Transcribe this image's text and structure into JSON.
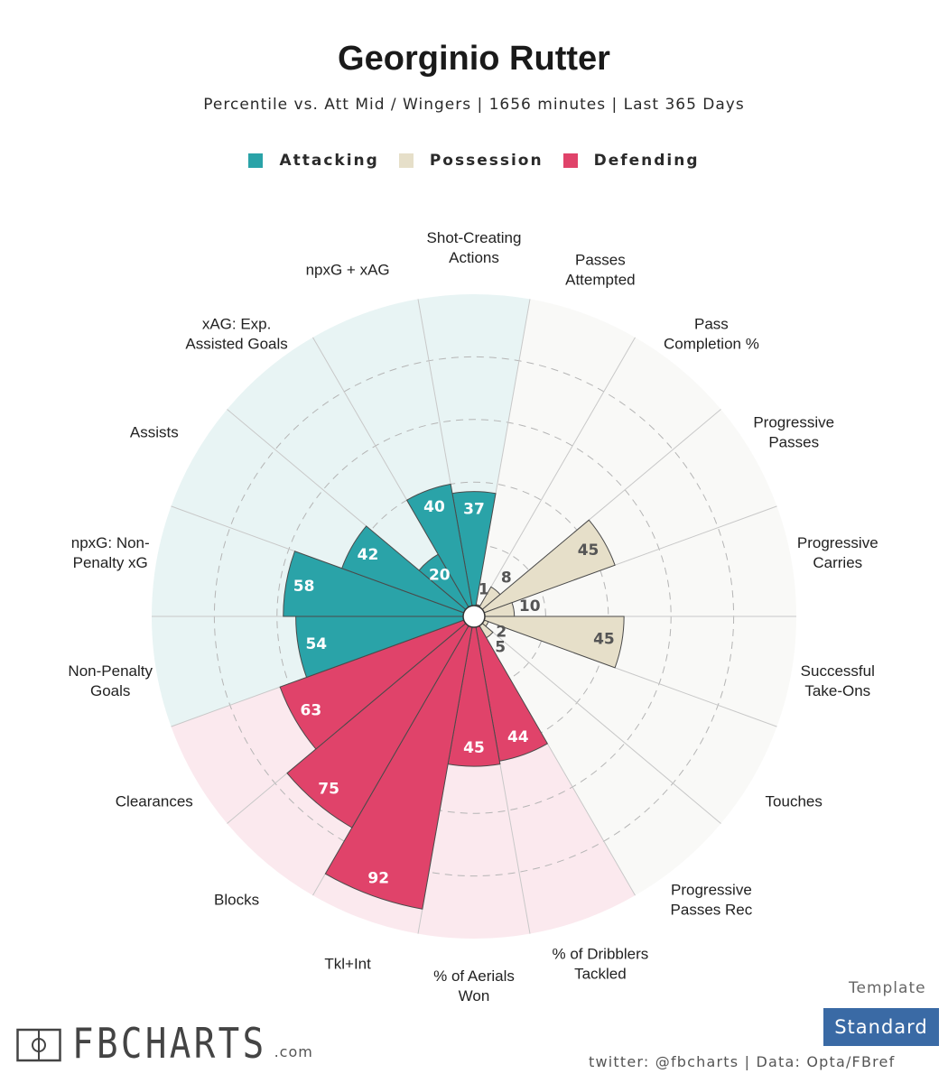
{
  "title": "Georginio Rutter",
  "subtitle": "Percentile vs. Att Mid / Wingers | 1656 minutes | Last 365 Days",
  "legend": [
    {
      "label": "Attacking",
      "color": "#2aa3a8"
    },
    {
      "label": "Possession",
      "color": "#e6dfc9"
    },
    {
      "label": "Defending",
      "color": "#e0436a"
    }
  ],
  "chart_data": {
    "type": "radial-bar",
    "range": [
      0,
      100
    ],
    "categories": [
      {
        "label": "Shot-Creating\nActions",
        "value": 37,
        "group": "Attacking"
      },
      {
        "label": "Passes\nAttempted",
        "value": 1,
        "group": "Possession"
      },
      {
        "label": "Pass\nCompletion %",
        "value": 8,
        "group": "Possession"
      },
      {
        "label": "Progressive\nPasses",
        "value": 45,
        "group": "Possession"
      },
      {
        "label": "Progressive\nCarries",
        "value": 10,
        "group": "Possession"
      },
      {
        "label": "Successful\nTake-Ons",
        "value": 45,
        "group": "Possession"
      },
      {
        "label": "Touches",
        "value": 2,
        "group": "Possession"
      },
      {
        "label": "Progressive\nPasses Rec",
        "value": 5,
        "group": "Possession"
      },
      {
        "label": "% of Dribblers\nTackled",
        "value": 44,
        "group": "Defending"
      },
      {
        "label": "% of Aerials\nWon",
        "value": 45,
        "group": "Defending"
      },
      {
        "label": "Tkl+Int",
        "value": 92,
        "group": "Defending"
      },
      {
        "label": "Blocks",
        "value": 75,
        "group": "Defending"
      },
      {
        "label": "Clearances",
        "value": 63,
        "group": "Defending"
      },
      {
        "label": "Non-Penalty\nGoals",
        "value": 54,
        "group": "Attacking"
      },
      {
        "label": "npxG: Non-\nPenalty xG",
        "value": 58,
        "group": "Attacking"
      },
      {
        "label": "Assists",
        "value": 42,
        "group": "Attacking"
      },
      {
        "label": "xAG: Exp.\nAssisted Goals",
        "value": 20,
        "group": "Attacking"
      },
      {
        "label": "npxG + xAG",
        "value": 40,
        "group": "Attacking"
      }
    ],
    "group_colors": {
      "Attacking": {
        "bar": "#2aa3a8",
        "background": "#e8f4f4",
        "value_text": "#ffffff"
      },
      "Possession": {
        "bar": "#e6dfc9",
        "background": "#f9f9f7",
        "value_text": "#555555"
      },
      "Defending": {
        "bar": "#e0436a",
        "background": "#fbe9ee",
        "value_text": "#ffffff"
      }
    }
  },
  "template": {
    "label": "Template",
    "value": "Standard"
  },
  "credit": "twitter: @fbcharts | Data: Opta/FBref",
  "brand": {
    "name": "FBCHARTS",
    "suffix": ".com"
  }
}
